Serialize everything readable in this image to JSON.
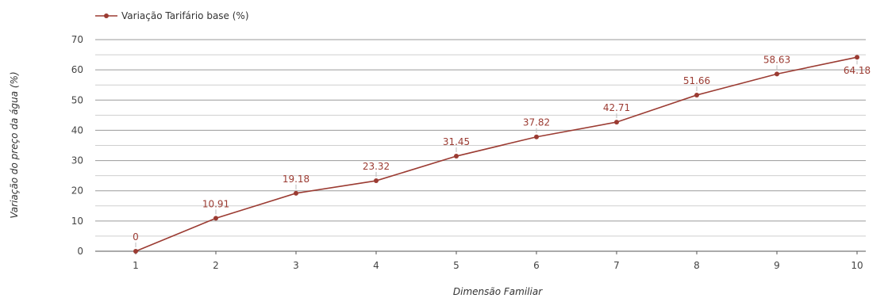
{
  "chart_data": {
    "type": "line",
    "xlabel": "Dimensão Familiar",
    "ylabel": "Variação do preço da água (%)",
    "x": [
      1,
      2,
      3,
      4,
      5,
      6,
      7,
      8,
      9,
      10
    ],
    "x_tick_labels": [
      "1",
      "2",
      "3",
      "4",
      "5",
      "6",
      "7",
      "8",
      "9",
      "10"
    ],
    "ylim": [
      0,
      70
    ],
    "y_ticks": [
      0,
      10,
      20,
      30,
      40,
      50,
      60,
      70
    ],
    "y_tick_labels": [
      "0",
      "10",
      "20",
      "30",
      "40",
      "50",
      "60",
      "70"
    ],
    "grid": true,
    "legend_position": "top-left",
    "series": [
      {
        "name": "Variação Tarifário base (%)",
        "color": "#9b3b32",
        "values": [
          0,
          10.91,
          19.18,
          23.32,
          31.45,
          37.82,
          42.71,
          51.66,
          58.63,
          64.18
        ],
        "data_labels": [
          "0",
          "10.91",
          "19.18",
          "23.32",
          "31.45",
          "37.82",
          "42.71",
          "51.66",
          "58.63",
          "64.18"
        ]
      }
    ]
  }
}
